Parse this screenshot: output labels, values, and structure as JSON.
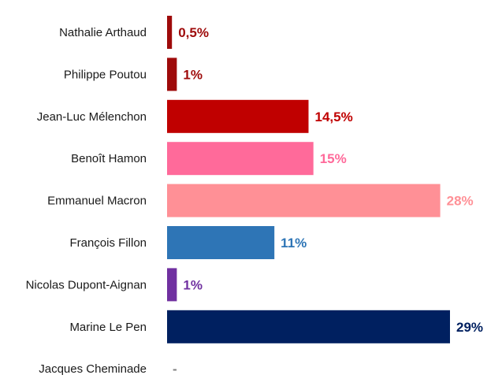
{
  "chart_data": {
    "type": "bar",
    "orientation": "horizontal",
    "title": "",
    "xlabel": "",
    "ylabel": "",
    "xlim": [
      0,
      29
    ],
    "grid": false,
    "legend": "none",
    "categories": [
      "Nathalie Arthaud",
      "Philippe Poutou",
      "Jean-Luc Mélenchon",
      "Benoît Hamon",
      "Emmanuel Macron",
      "François Fillon",
      "Nicolas Dupont-Aignan",
      "Marine Le Pen",
      "Jacques Cheminade"
    ],
    "values": [
      0.5,
      1,
      14.5,
      15,
      28,
      11,
      1,
      29,
      null
    ],
    "value_labels": [
      "0,5%",
      "1%",
      "14,5%",
      "15%",
      "28%",
      "11%",
      "1%",
      "29%",
      "-"
    ],
    "colors": [
      "#9e0a0a",
      "#9e0a0a",
      "#c00000",
      "#ff6a9a",
      "#ff9096",
      "#2e75b6",
      "#7030a0",
      "#002060",
      "#808080"
    ]
  }
}
